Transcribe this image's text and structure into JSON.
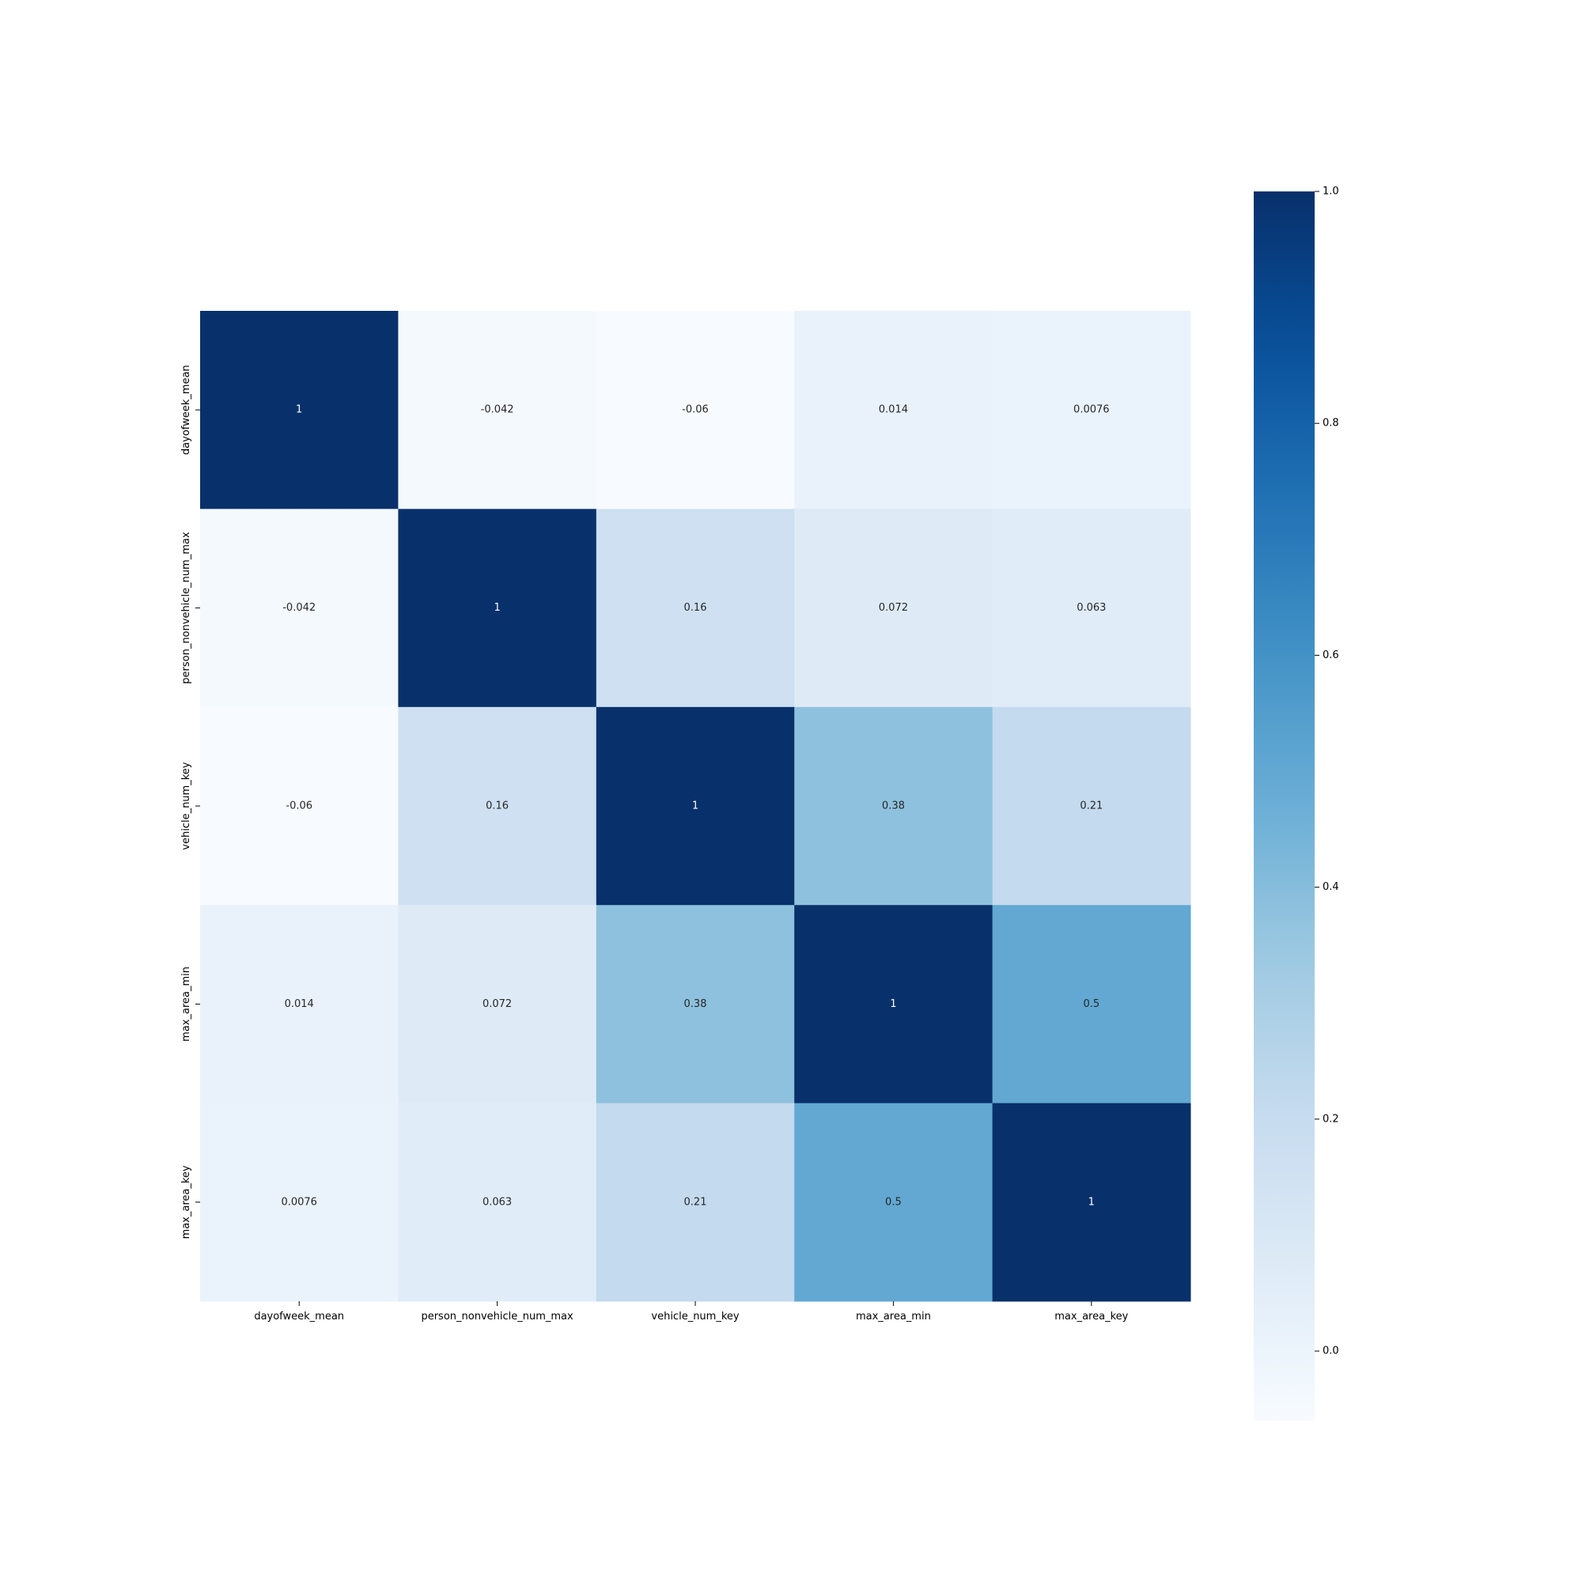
{
  "chart_data": {
    "type": "heatmap",
    "title": "",
    "xlabel": "",
    "ylabel": "",
    "x_labels": [
      "dayofweek_mean",
      "person_nonvehicle_num_max",
      "vehicle_num_key",
      "max_area_min",
      "max_area_key"
    ],
    "y_labels": [
      "dayofweek_mean",
      "person_nonvehicle_num_max",
      "vehicle_num_key",
      "max_area_min",
      "max_area_key"
    ],
    "values": [
      [
        1,
        -0.042,
        -0.06,
        0.014,
        0.0076
      ],
      [
        -0.042,
        1,
        0.16,
        0.072,
        0.063
      ],
      [
        -0.06,
        0.16,
        1,
        0.38,
        0.21
      ],
      [
        0.014,
        0.072,
        0.38,
        1,
        0.5
      ],
      [
        0.0076,
        0.063,
        0.21,
        0.5,
        1
      ]
    ],
    "cell_labels": [
      [
        "1",
        "-0.042",
        "-0.06",
        "0.014",
        "0.0076"
      ],
      [
        "-0.042",
        "1",
        "0.16",
        "0.072",
        "0.063"
      ],
      [
        "-0.06",
        "0.16",
        "1",
        "0.38",
        "0.21"
      ],
      [
        "0.014",
        "0.072",
        "0.38",
        "1",
        "0.5"
      ],
      [
        "0.0076",
        "0.063",
        "0.21",
        "0.5",
        "1"
      ]
    ],
    "colormap": "Blues",
    "vmin": -0.06,
    "vmax": 1.0,
    "colorbar": {
      "ticks": [
        0.0,
        0.2,
        0.4,
        0.6,
        0.8,
        1.0
      ],
      "tick_labels": [
        "0.0",
        "0.2",
        "0.4",
        "0.6",
        "0.8",
        "1.0"
      ],
      "placement": "right"
    },
    "grid": false
  }
}
